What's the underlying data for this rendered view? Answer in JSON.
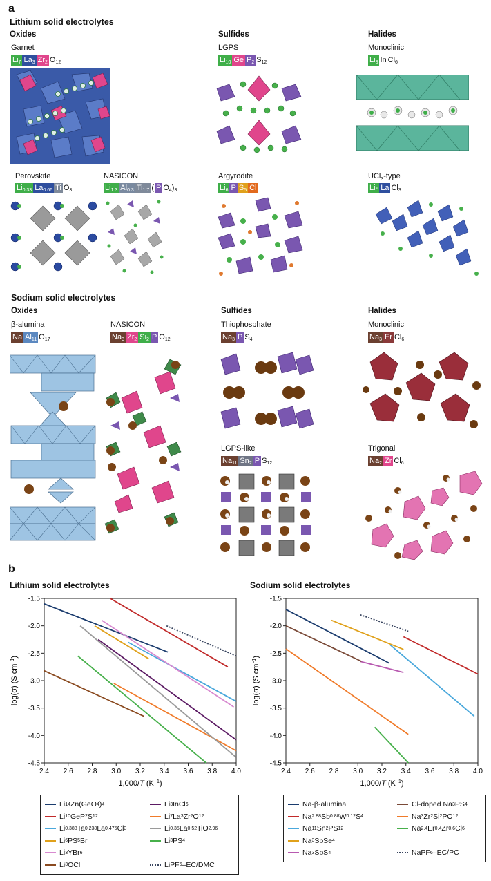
{
  "panel_a": {
    "label": "a",
    "lithium_title": "Lithium solid electrolytes",
    "sodium_title": "Sodium solid electrolytes",
    "li_groups": {
      "oxides": "Oxides",
      "sulfides": "Sulfides",
      "halides": "Halides"
    },
    "na_groups": {
      "oxides": "Oxides",
      "sulfides": "Sulfides",
      "halides": "Halides"
    },
    "structures": {
      "garnet": {
        "name": "Garnet"
      },
      "lgps": {
        "name": "LGPS"
      },
      "li_monoclinic": {
        "name": "Monoclinic"
      },
      "perovskite": {
        "name": "Perovskite"
      },
      "li_nasicon": {
        "name": "NASICON"
      },
      "argyrodite": {
        "name": "Argyrodite"
      },
      "ucl3": {
        "name_pre": "UCl",
        "name_sub": "3",
        "name_post": "-type"
      },
      "beta_alumina": {
        "name": "β-alumina"
      },
      "na_nasicon": {
        "name": "NASICON"
      },
      "thiophosphate": {
        "name": "Thiophosphate"
      },
      "na_monoclinic": {
        "name": "Monoclinic"
      },
      "lgps_like": {
        "name": "LGPS-like"
      },
      "trigonal": {
        "name": "Trigonal"
      }
    },
    "colors": {
      "li": "#3fae49",
      "na": "#6b4030",
      "la": "#2f4f9e",
      "zr": "#e0468c",
      "ge": "#e0468c",
      "p": "#7a57b0",
      "in": "#3fae49",
      "ti": "#7f8a9a",
      "al": "#7a8aa0",
      "s": "#e0a11b",
      "cl": "#e26a1d",
      "sn": "#6f7585",
      "si": "#3fae49",
      "er": "#8a3a3a",
      "al_na": "#5b88c0"
    }
  },
  "panel_b": {
    "label": "b",
    "charts": [
      {
        "title": "Lithium solid electrolytes",
        "type": "line",
        "xlabel_pre": "1,000/",
        "xlabel_var": "T",
        "xlabel_post": " (K",
        "xlabel_sup": "−1",
        "xlabel_end": ")",
        "ylabel_pre": "log(σ) (S cm",
        "ylabel_sup": "−1",
        "ylabel_end": ")",
        "xlim": [
          2.4,
          4.0
        ],
        "ylim": [
          -4.5,
          -1.5
        ],
        "xticks": [
          "2.4",
          "2.6",
          "2.8",
          "3.0",
          "3.2",
          "3.4",
          "3.6",
          "3.8",
          "4.0"
        ],
        "yticks": [
          "-1.5",
          "-2.0",
          "-2.5",
          "-3.0",
          "-3.5",
          "-4.0",
          "-4.5"
        ],
        "series": [
          {
            "name": "Li14Zn(GeO4)4",
            "color": "#1b3c6e",
            "x": [
              2.4,
              3.43
            ],
            "y": [
              -1.6,
              -2.48
            ]
          },
          {
            "name": "Li10GeP2S12",
            "color": "#c12a2a",
            "x": [
              2.95,
              3.93
            ],
            "y": [
              -1.5,
              -2.75
            ]
          },
          {
            "name": "Li0.388Ta0.238La0.475Cl3",
            "color": "#4aa8dc",
            "x": [
              3.1,
              4.0
            ],
            "y": [
              -2.3,
              -3.38
            ]
          },
          {
            "name": "Li6PS5Br",
            "color": "#e0a11b",
            "x": [
              2.82,
              3.27
            ],
            "y": [
              -2.0,
              -2.6
            ]
          },
          {
            "name": "Li3YBr6",
            "color": "#d88ad0",
            "x": [
              2.88,
              3.98
            ],
            "y": [
              -1.9,
              -3.48
            ]
          },
          {
            "name": "Li3OCl",
            "color": "#8a4a20",
            "x": [
              2.4,
              3.23
            ],
            "y": [
              -2.82,
              -3.65
            ]
          },
          {
            "name": "Li3InCl6",
            "color": "#5b1a63",
            "x": [
              2.85,
              4.0
            ],
            "y": [
              -2.25,
              -4.08
            ]
          },
          {
            "name": "Li7La3Zr2O12",
            "color": "#f07b2a",
            "x": [
              2.98,
              4.0
            ],
            "y": [
              -3.05,
              -4.28
            ]
          },
          {
            "name": "Li0.35La0.52TiO2.96",
            "color": "#9a9a9a",
            "x": [
              2.7,
              4.0
            ],
            "y": [
              -2.0,
              -4.4
            ]
          },
          {
            "name": "Li3PS4",
            "color": "#47b04b",
            "x": [
              2.68,
              3.75
            ],
            "y": [
              -2.55,
              -4.5
            ]
          },
          {
            "name": "LiPF6–EC/DMC",
            "color": "#3a4660",
            "dotted": true,
            "x": [
              3.42,
              4.0
            ],
            "y": [
              -2.0,
              -2.55
            ]
          }
        ],
        "legend": [
          {
            "parts": [
              [
                "Li",
                ""
              ],
              [
                "14",
                "sub"
              ],
              [
                "Zn(GeO",
                ""
              ],
              [
                "4",
                "sub"
              ],
              [
                ")",
                ""
              ],
              [
                "4",
                "sub"
              ]
            ],
            "color": "#1b3c6e"
          },
          {
            "parts": [
              [
                "Li",
                ""
              ],
              [
                "3",
                "sub"
              ],
              [
                "InCl",
                ""
              ],
              [
                "6",
                "sub"
              ]
            ],
            "color": "#5b1a63"
          },
          {
            "parts": [
              [
                "Li",
                ""
              ],
              [
                "10",
                "sub"
              ],
              [
                "GeP",
                ""
              ],
              [
                "2",
                "sub"
              ],
              [
                "S",
                ""
              ],
              [
                "12",
                "sub"
              ]
            ],
            "color": "#c12a2a"
          },
          {
            "parts": [
              [
                "Li",
                ""
              ],
              [
                "7",
                "sub"
              ],
              [
                "La",
                ""
              ],
              [
                "3",
                "sub"
              ],
              [
                "Zr",
                ""
              ],
              [
                "2",
                "sub"
              ],
              [
                "O",
                ""
              ],
              [
                "12",
                "sub"
              ]
            ],
            "color": "#f07b2a"
          },
          {
            "parts": [
              [
                "Li",
                ""
              ],
              [
                "0.388",
                "sub"
              ],
              [
                "Ta",
                ""
              ],
              [
                "0.238",
                "sub"
              ],
              [
                "La",
                ""
              ],
              [
                "0.475",
                "sub"
              ],
              [
                "Cl",
                ""
              ],
              [
                "3",
                "sub"
              ]
            ],
            "color": "#4aa8dc"
          },
          {
            "parts": [
              [
                "Li",
                ""
              ],
              [
                "0.35",
                "sub"
              ],
              [
                "La",
                ""
              ],
              [
                "0.52",
                "sub"
              ],
              [
                "TiO",
                ""
              ],
              [
                "2.96",
                "sub"
              ]
            ],
            "color": "#9a9a9a"
          },
          {
            "parts": [
              [
                "Li",
                ""
              ],
              [
                "6",
                "sub"
              ],
              [
                "PS",
                ""
              ],
              [
                "5",
                "sub"
              ],
              [
                "Br",
                ""
              ]
            ],
            "color": "#e0a11b"
          },
          {
            "parts": [
              [
                "Li",
                ""
              ],
              [
                "3",
                "sub"
              ],
              [
                "PS",
                ""
              ],
              [
                "4",
                "sub"
              ]
            ],
            "color": "#47b04b"
          },
          {
            "parts": [
              [
                "Li",
                ""
              ],
              [
                "3",
                "sub"
              ],
              [
                "YBr",
                ""
              ],
              [
                "6",
                "sub"
              ]
            ],
            "color": "#d88ad0"
          },
          {
            "parts": [],
            "color": ""
          },
          {
            "parts": [
              [
                "Li",
                ""
              ],
              [
                "3",
                "sub"
              ],
              [
                "OCl",
                ""
              ]
            ],
            "color": "#8a4a20"
          },
          {
            "parts": [
              [
                "LiPF",
                ""
              ],
              [
                "6",
                "sub"
              ],
              [
                "–EC/DMC",
                ""
              ]
            ],
            "color": "#3a4660",
            "dotted": true
          }
        ]
      },
      {
        "title": "Sodium solid electrolytes",
        "type": "line",
        "xlabel_pre": "1,000/",
        "xlabel_var": "T",
        "xlabel_post": " (K",
        "xlabel_sup": "−1",
        "xlabel_end": ")",
        "ylabel_pre": "log(σ) (S cm",
        "ylabel_sup": "−1",
        "ylabel_end": ")",
        "xlim": [
          2.4,
          4.0
        ],
        "ylim": [
          -4.5,
          -1.5
        ],
        "xticks": [
          "2.4",
          "2.6",
          "2.8",
          "3.0",
          "3.2",
          "3.4",
          "3.6",
          "3.8",
          "4.0"
        ],
        "yticks": [
          "-1.5",
          "-2.0",
          "-2.5",
          "-3.0",
          "-3.5",
          "-4.0",
          "-4.5"
        ],
        "series": [
          {
            "name": "Na-β-alumina",
            "color": "#1b3c6e",
            "x": [
              2.4,
              3.26
            ],
            "y": [
              -1.7,
              -2.68
            ]
          },
          {
            "name": "Na2.88Sb0.88W0.12S4",
            "color": "#c12a2a",
            "x": [
              3.38,
              4.0
            ],
            "y": [
              -2.2,
              -2.88
            ]
          },
          {
            "name": "Na11Sn2PS12",
            "color": "#4aa8dc",
            "x": [
              3.27,
              3.97
            ],
            "y": [
              -2.35,
              -3.65
            ]
          },
          {
            "name": "Na3SbSe4",
            "color": "#e0a11b",
            "x": [
              2.78,
              3.38
            ],
            "y": [
              -1.9,
              -2.43
            ]
          },
          {
            "name": "Na3SbS4",
            "color": "#b85ab0",
            "x": [
              3.02,
              3.38
            ],
            "y": [
              -2.65,
              -2.85
            ]
          },
          {
            "name": "Cl-doped Na3PS4",
            "color": "#7a4a38",
            "x": [
              2.4,
              3.03
            ],
            "y": [
              -2.0,
              -2.65
            ]
          },
          {
            "name": "Na3Zr2Si2PO12",
            "color": "#f07b2a",
            "x": [
              2.4,
              3.42
            ],
            "y": [
              -2.42,
              -3.98
            ]
          },
          {
            "name": "Na2.4Er0.4Zr0.6Cl6",
            "color": "#47b04b",
            "x": [
              3.14,
              3.42
            ],
            "y": [
              -3.85,
              -4.5
            ]
          },
          {
            "name": "NaPF6–EC/PC",
            "color": "#3a4660",
            "dotted": true,
            "x": [
              3.02,
              3.42
            ],
            "y": [
              -1.8,
              -2.1
            ]
          }
        ],
        "legend": [
          {
            "parts": [
              [
                "Na-β-alumina",
                ""
              ]
            ],
            "color": "#1b3c6e"
          },
          {
            "parts": [
              [
                "Cl-doped Na",
                ""
              ],
              [
                "3",
                "sub"
              ],
              [
                "PS",
                ""
              ],
              [
                "4",
                "sub"
              ]
            ],
            "color": "#7a4a38"
          },
          {
            "parts": [
              [
                "Na",
                ""
              ],
              [
                "2.88",
                "sub"
              ],
              [
                "Sb",
                ""
              ],
              [
                "0.88",
                "sub"
              ],
              [
                "W",
                ""
              ],
              [
                "0.12",
                "sub"
              ],
              [
                "S",
                ""
              ],
              [
                "4",
                "sub"
              ]
            ],
            "color": "#c12a2a"
          },
          {
            "parts": [
              [
                "Na",
                ""
              ],
              [
                "3",
                "sub"
              ],
              [
                "Zr",
                ""
              ],
              [
                "2",
                "sub"
              ],
              [
                "Si",
                ""
              ],
              [
                "2",
                "sub"
              ],
              [
                "PO",
                ""
              ],
              [
                "12",
                "sub"
              ]
            ],
            "color": "#f07b2a"
          },
          {
            "parts": [
              [
                "Na",
                ""
              ],
              [
                "11",
                "sub"
              ],
              [
                "Sn",
                ""
              ],
              [
                "2",
                "sub"
              ],
              [
                "PS",
                ""
              ],
              [
                "12",
                "sub"
              ]
            ],
            "color": "#4aa8dc"
          },
          {
            "parts": [
              [
                "Na",
                ""
              ],
              [
                "2.4",
                "sub"
              ],
              [
                "Er",
                ""
              ],
              [
                "0.4",
                "sub"
              ],
              [
                "Zr",
                ""
              ],
              [
                "0.6",
                "sub"
              ],
              [
                "Cl",
                ""
              ],
              [
                "6",
                "sub"
              ]
            ],
            "color": "#47b04b"
          },
          {
            "parts": [
              [
                "Na",
                ""
              ],
              [
                "3",
                "sub"
              ],
              [
                "SbSe",
                ""
              ],
              [
                "4",
                "sub"
              ]
            ],
            "color": "#e0a11b"
          },
          {
            "parts": [],
            "color": ""
          },
          {
            "parts": [
              [
                "Na",
                ""
              ],
              [
                "3",
                "sub"
              ],
              [
                "SbS",
                ""
              ],
              [
                "4",
                "sub"
              ]
            ],
            "color": "#b85ab0"
          },
          {
            "parts": [
              [
                "NaPF",
                ""
              ],
              [
                "6",
                "sub"
              ],
              [
                "–EC/PC",
                ""
              ]
            ],
            "color": "#3a4660",
            "dotted": true
          }
        ]
      }
    ]
  }
}
